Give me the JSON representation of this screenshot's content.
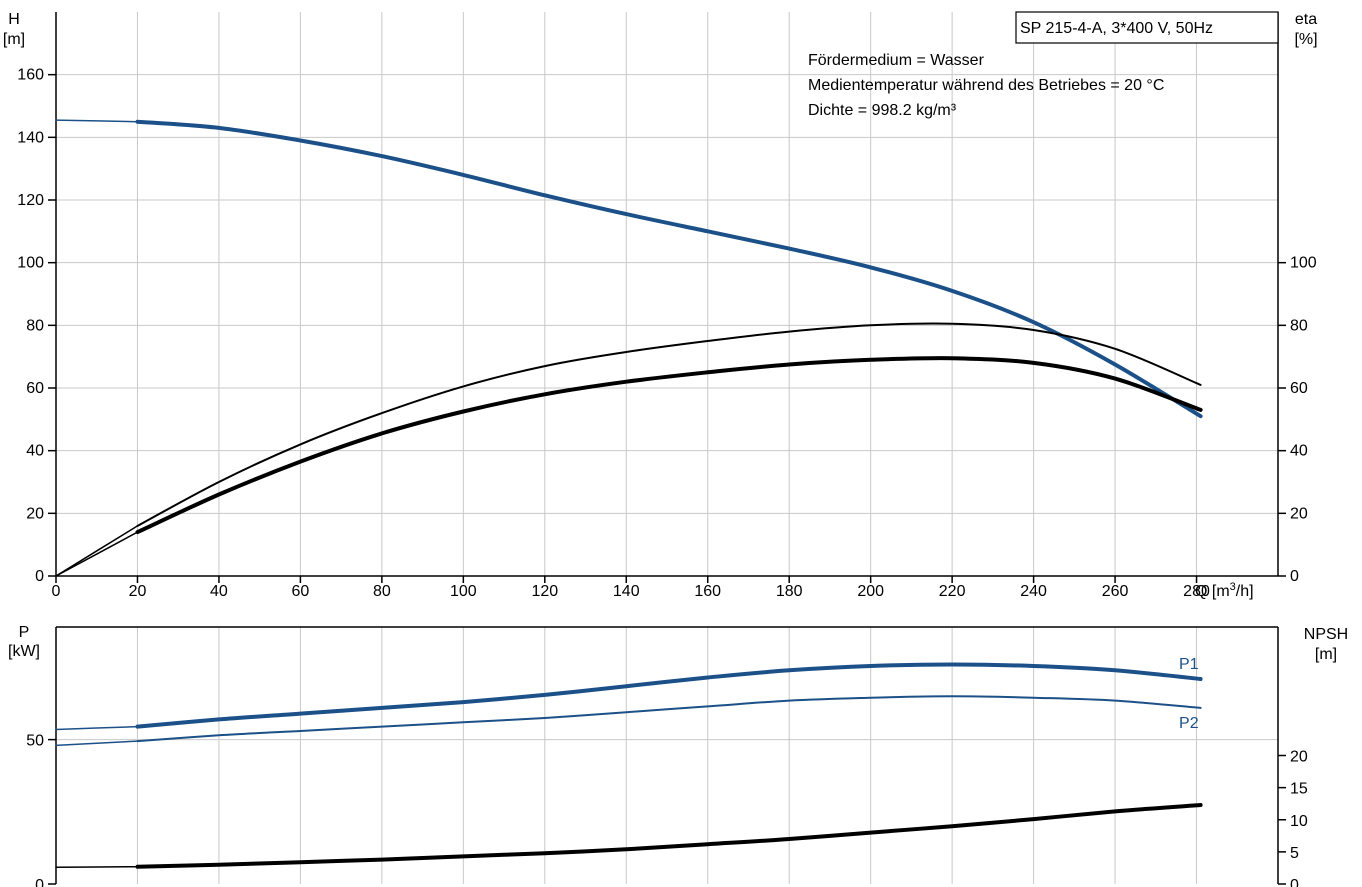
{
  "colors": {
    "blue": "#1b5188",
    "black": "#000000",
    "grid": "#c8c8c8"
  },
  "chart_data": [
    {
      "type": "line",
      "title": "SP 215-4-A, 3*400 V, 50Hz",
      "annotations": [
        "Fördermedium = Wasser",
        "Medientemperatur während des Betriebes = 20 °C",
        "Dichte = 998.2 kg/m³"
      ],
      "xlabel": "Q [m³/h]",
      "xlabel_parts": {
        "base": "Q [m",
        "sup": "3",
        "tail": "/h]"
      },
      "ylabel": "H\n[m]",
      "ylabel_lines": [
        "H",
        "[m]"
      ],
      "y2label": "eta\n[%]",
      "y2label_lines": [
        "eta",
        "[%]"
      ],
      "xlim": [
        0,
        300
      ],
      "ylim": [
        0,
        180
      ],
      "y2lim": [
        0,
        180
      ],
      "xticks": [
        0,
        20,
        40,
        60,
        80,
        100,
        120,
        140,
        160,
        180,
        200,
        220,
        240,
        260,
        280
      ],
      "yticks": [
        0,
        20,
        40,
        60,
        80,
        100,
        120,
        140,
        160
      ],
      "y2ticks": [
        0,
        20,
        40,
        60,
        80,
        100
      ],
      "grid": true,
      "series": [
        {
          "axis": "left",
          "color": "#1b5188",
          "width": 4,
          "x": [
            20,
            40,
            60,
            80,
            100,
            120,
            140,
            160,
            180,
            200,
            220,
            240,
            260,
            281
          ],
          "y": [
            145,
            143,
            139,
            134,
            128,
            121.5,
            115.5,
            110,
            104.5,
            98.5,
            91,
            81,
            67.5,
            51
          ],
          "extension": {
            "x": [
              0,
              20
            ],
            "y": [
              145.5,
              145
            ],
            "width": 1.5
          }
        },
        {
          "axis": "right",
          "color": "#000000",
          "width": 2,
          "x": [
            20,
            40,
            60,
            80,
            100,
            120,
            140,
            160,
            180,
            200,
            220,
            240,
            260,
            281
          ],
          "y": [
            16,
            30,
            42,
            52,
            60.5,
            67,
            71.5,
            75,
            78,
            80,
            80.5,
            78.5,
            72.5,
            61
          ],
          "extension": {
            "x": [
              0,
              20
            ],
            "y": [
              0,
              16
            ],
            "width": 1.5
          }
        },
        {
          "axis": "right",
          "color": "#000000",
          "width": 4,
          "x": [
            20,
            40,
            60,
            80,
            100,
            120,
            140,
            160,
            180,
            200,
            220,
            240,
            260,
            281
          ],
          "y": [
            14,
            26,
            36.5,
            45.5,
            52.5,
            58,
            62,
            65,
            67.5,
            69,
            69.5,
            68,
            63,
            53
          ],
          "extension": {
            "x": [
              0,
              20
            ],
            "y": [
              0,
              14
            ],
            "width": 1.5
          }
        }
      ]
    },
    {
      "type": "line",
      "xlim": [
        0,
        300
      ],
      "ylabel": "P\n[kW]",
      "ylabel_lines": [
        "P",
        "[kW]"
      ],
      "y2label": "NPSH\n[m]",
      "y2label_lines": [
        "NPSH",
        "[m]"
      ],
      "ylim": [
        0,
        89
      ],
      "y2lim": [
        0,
        40
      ],
      "yticks": [
        0,
        50
      ],
      "y2ticks": [
        0,
        5,
        10,
        15,
        20
      ],
      "grid": true,
      "series": [
        {
          "name": "P1",
          "axis": "left",
          "color": "#1b5188",
          "width": 4,
          "x": [
            20,
            40,
            60,
            80,
            100,
            120,
            140,
            160,
            180,
            200,
            220,
            240,
            260,
            281
          ],
          "y": [
            54.5,
            57,
            59,
            61,
            63,
            65.5,
            68.5,
            71.5,
            74,
            75.5,
            76,
            75.5,
            74,
            71
          ],
          "extension": {
            "x": [
              0,
              20
            ],
            "y": [
              53.5,
              54.5
            ],
            "width": 1.5
          }
        },
        {
          "name": "P2",
          "axis": "left",
          "color": "#1b5188",
          "width": 2,
          "x": [
            20,
            40,
            60,
            80,
            100,
            120,
            140,
            160,
            180,
            200,
            220,
            240,
            260,
            281
          ],
          "y": [
            49.5,
            51.5,
            53,
            54.5,
            56,
            57.5,
            59.5,
            61.5,
            63.5,
            64.5,
            65,
            64.5,
            63.5,
            61
          ],
          "extension": {
            "x": [
              0,
              20
            ],
            "y": [
              48,
              49.5
            ],
            "width": 1.5
          }
        },
        {
          "axis": "right",
          "color": "#000000",
          "width": 4,
          "x": [
            20,
            40,
            60,
            80,
            100,
            120,
            140,
            160,
            180,
            200,
            220,
            240,
            260,
            281
          ],
          "y": [
            2.7,
            3,
            3.4,
            3.8,
            4.3,
            4.8,
            5.4,
            6.2,
            7,
            8,
            9,
            10.1,
            11.3,
            12.3
          ],
          "extension": {
            "x": [
              0,
              20
            ],
            "y": [
              2.6,
              2.7
            ],
            "width": 1.5
          }
        }
      ]
    }
  ]
}
